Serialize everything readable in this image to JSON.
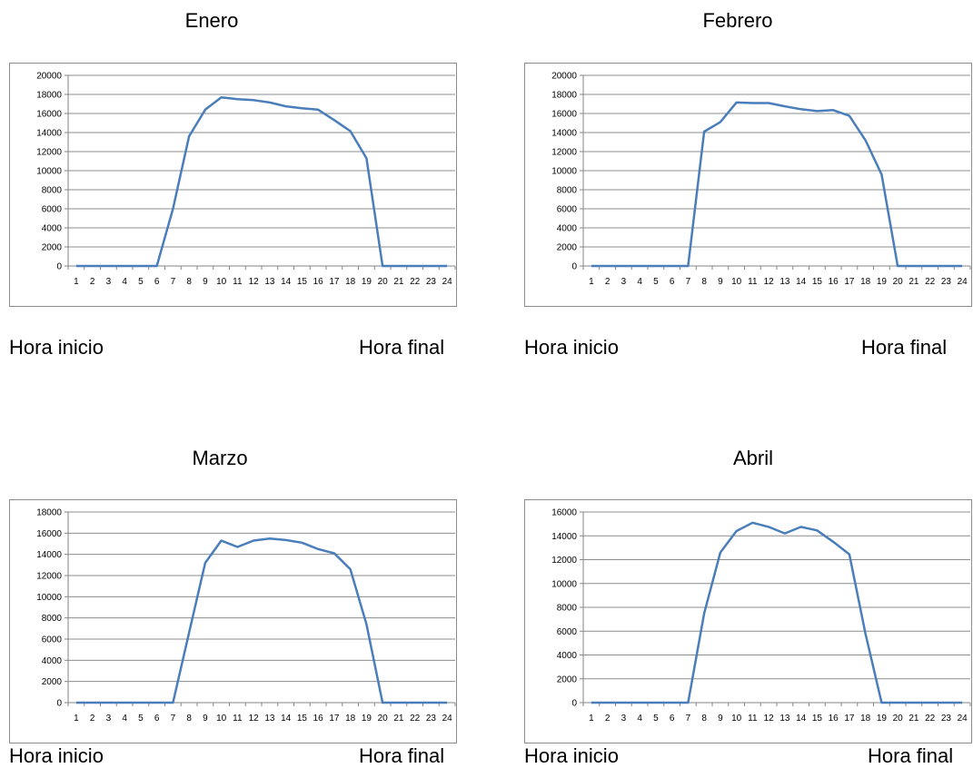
{
  "chart_data": [
    {
      "type": "line",
      "title": "Enero",
      "x": [
        1,
        2,
        3,
        4,
        5,
        6,
        7,
        8,
        9,
        10,
        11,
        12,
        13,
        14,
        15,
        16,
        17,
        18,
        19,
        20,
        21,
        22,
        23,
        24
      ],
      "series": [
        {
          "values": [
            0,
            0,
            0,
            0,
            0,
            0,
            6000,
            13600,
            16400,
            17700,
            17500,
            17400,
            17150,
            16750,
            16550,
            16400,
            15300,
            14150,
            11300,
            0,
            0,
            0,
            0,
            0
          ]
        }
      ],
      "ylim": [
        0,
        20000
      ],
      "yticks": [
        0,
        2000,
        4000,
        6000,
        8000,
        10000,
        12000,
        14000,
        16000,
        18000,
        20000
      ],
      "grid": true,
      "color": "#4a7ebb",
      "left_caption": "Hora inicio",
      "right_caption": "Hora final"
    },
    {
      "type": "line",
      "title": "Febrero",
      "x": [
        1,
        2,
        3,
        4,
        5,
        6,
        7,
        8,
        9,
        10,
        11,
        12,
        13,
        14,
        15,
        16,
        17,
        18,
        19,
        20,
        21,
        22,
        23,
        24
      ],
      "series": [
        {
          "values": [
            0,
            0,
            0,
            0,
            0,
            0,
            0,
            14100,
            15100,
            17150,
            17100,
            17100,
            16750,
            16450,
            16250,
            16350,
            15750,
            13200,
            9600,
            0,
            0,
            0,
            0,
            0
          ]
        }
      ],
      "ylim": [
        0,
        20000
      ],
      "yticks": [
        0,
        2000,
        4000,
        6000,
        8000,
        10000,
        12000,
        14000,
        16000,
        18000,
        20000
      ],
      "grid": true,
      "color": "#4a7ebb",
      "left_caption": "Hora inicio",
      "right_caption": "Hora final"
    },
    {
      "type": "line",
      "title": "Marzo",
      "x": [
        1,
        2,
        3,
        4,
        5,
        6,
        7,
        8,
        9,
        10,
        11,
        12,
        13,
        14,
        15,
        16,
        17,
        18,
        19,
        20,
        21,
        22,
        23,
        24
      ],
      "series": [
        {
          "values": [
            0,
            0,
            0,
            0,
            0,
            0,
            0,
            6600,
            13200,
            15300,
            14700,
            15300,
            15500,
            15350,
            15100,
            14500,
            14100,
            12600,
            7400,
            0,
            0,
            0,
            0,
            0
          ]
        }
      ],
      "ylim": [
        0,
        18000
      ],
      "yticks": [
        0,
        2000,
        4000,
        6000,
        8000,
        10000,
        12000,
        14000,
        16000,
        18000
      ],
      "grid": true,
      "color": "#4a7ebb",
      "left_caption": "Hora inicio",
      "right_caption": "Hora final"
    },
    {
      "type": "line",
      "title": "Abril",
      "x": [
        1,
        2,
        3,
        4,
        5,
        6,
        7,
        8,
        9,
        10,
        11,
        12,
        13,
        14,
        15,
        16,
        17,
        18,
        19,
        20,
        21,
        22,
        23,
        24
      ],
      "series": [
        {
          "values": [
            0,
            0,
            0,
            0,
            0,
            0,
            0,
            7500,
            12600,
            14400,
            15100,
            14750,
            14200,
            14750,
            14450,
            13500,
            12450,
            5800,
            0,
            0,
            0,
            0,
            0,
            0
          ]
        }
      ],
      "ylim": [
        0,
        16000
      ],
      "yticks": [
        0,
        2000,
        4000,
        6000,
        8000,
        10000,
        12000,
        14000,
        16000
      ],
      "grid": true,
      "color": "#4a7ebb",
      "left_caption": "Hora inicio",
      "right_caption": "Hora final"
    }
  ]
}
